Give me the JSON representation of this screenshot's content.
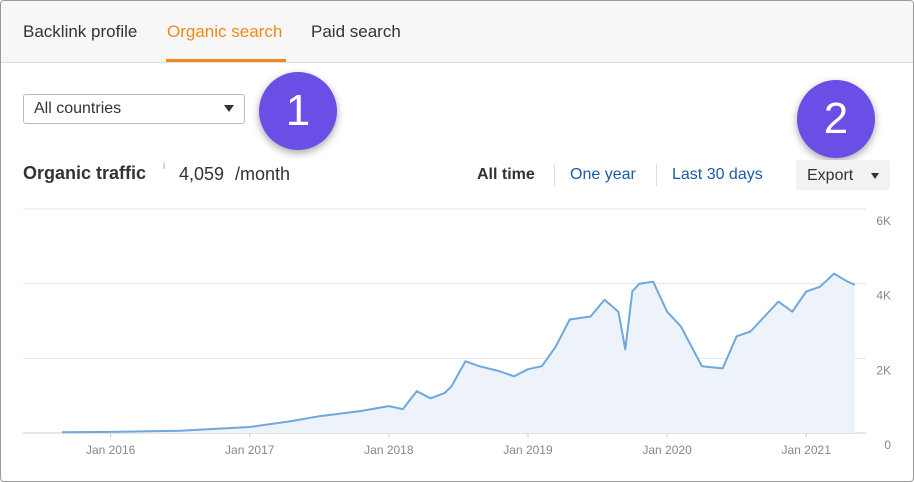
{
  "tabs": [
    "Backlink profile",
    "Organic search",
    "Paid search"
  ],
  "country_select": "All countries",
  "badges": [
    "1",
    "2"
  ],
  "traffic": {
    "label": "Organic traffic",
    "info": "i",
    "value": "4,059",
    "unit": "/month"
  },
  "periods": [
    "All time",
    "One year",
    "Last 30 days"
  ],
  "export": "Export",
  "chart_data": {
    "type": "area",
    "color": "#6fa8dc",
    "fill": "#eef3fb",
    "grid": true,
    "x": [
      2015.65,
      2016.0,
      2016.5,
      2017.0,
      2017.3,
      2017.5,
      2017.8,
      2018.0,
      2018.1,
      2018.2,
      2018.3,
      2018.4,
      2018.45,
      2018.55,
      2018.65,
      2018.8,
      2018.9,
      2019.0,
      2019.1,
      2019.2,
      2019.3,
      2019.45,
      2019.55,
      2019.65,
      2019.7,
      2019.75,
      2019.8,
      2019.9,
      2020.0,
      2020.1,
      2020.25,
      2020.4,
      2020.5,
      2020.6,
      2020.8,
      2020.9,
      2021.0,
      2021.1,
      2021.2,
      2021.3,
      2021.35
    ],
    "values": [
      20,
      30,
      60,
      160,
      320,
      450,
      590,
      720,
      640,
      1120,
      930,
      1070,
      1250,
      1920,
      1790,
      1650,
      1520,
      1710,
      1790,
      2320,
      3040,
      3120,
      3570,
      3250,
      2240,
      3790,
      4000,
      4050,
      3250,
      2850,
      1790,
      1730,
      2590,
      2720,
      3520,
      3250,
      3790,
      3920,
      4270,
      4050,
      3970
    ],
    "xlim": [
      2015.37,
      2021.43
    ],
    "xticks": [
      {
        "value": 2016,
        "label": "Jan 2016"
      },
      {
        "value": 2017,
        "label": "Jan 2017"
      },
      {
        "value": 2018,
        "label": "Jan 2018"
      },
      {
        "value": 2019,
        "label": "Jan 2019"
      },
      {
        "value": 2020,
        "label": "Jan 2020"
      },
      {
        "value": 2021,
        "label": "Jan 2021"
      }
    ],
    "ylim": [
      0,
      6000
    ],
    "yticks": [
      0,
      {
        "value": 2000,
        "label": "2K"
      },
      {
        "value": 4000,
        "label": "4K"
      },
      {
        "value": 6000,
        "label": "6K"
      }
    ]
  }
}
